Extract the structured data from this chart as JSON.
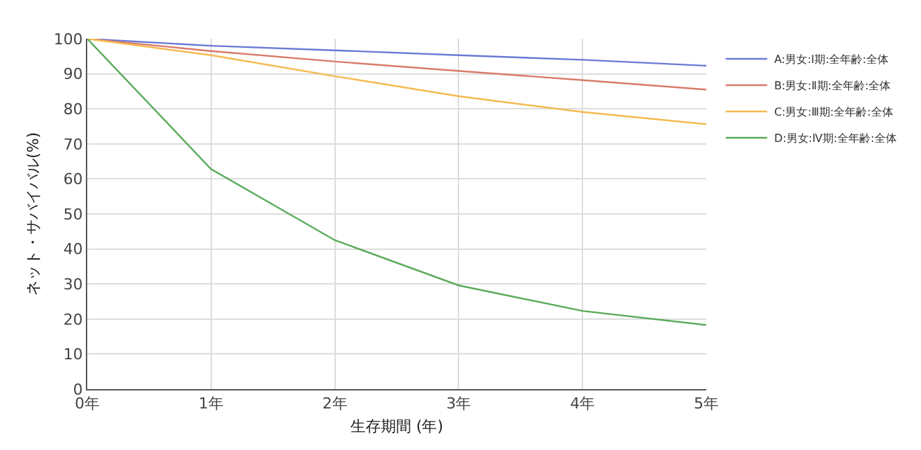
{
  "chart_data": {
    "type": "line",
    "xlabel": "生存期間 (年)",
    "ylabel": "ネット・サバイバル(%)",
    "x": [
      0,
      1,
      2,
      3,
      4,
      5
    ],
    "series": [
      {
        "name": "A:男女:Ⅰ期:全年齢:全体",
        "color": "#6a78d6",
        "values": [
          100,
          98,
          96.7,
          95.3,
          94,
          92.3
        ]
      },
      {
        "name": "B:男女:Ⅱ期:全年齢:全体",
        "color": "#d97a6a",
        "values": [
          100,
          96.5,
          93.5,
          90.8,
          88.2,
          85.5
        ]
      },
      {
        "name": "C:男女:Ⅲ期:全年齢:全体",
        "color": "#f5b94f",
        "values": [
          100,
          95.3,
          89.3,
          83.6,
          79.1,
          75.6
        ]
      },
      {
        "name": "D:男女:Ⅳ期:全年齢:全体",
        "color": "#5aaa5a",
        "values": [
          100,
          62.8,
          42.5,
          29.6,
          22.3,
          18.3
        ]
      }
    ],
    "xlim": [
      0,
      5
    ],
    "xticks": [
      {
        "value": 0,
        "label": "0年"
      },
      {
        "value": 1,
        "label": "1年"
      },
      {
        "value": 2,
        "label": "2年"
      },
      {
        "value": 3,
        "label": "3年"
      },
      {
        "value": 4,
        "label": "4年"
      },
      {
        "value": 5,
        "label": "5年"
      }
    ],
    "ylim": [
      0,
      100
    ],
    "yticks": [
      0,
      10,
      20,
      30,
      40,
      50,
      60,
      70,
      80,
      90,
      100
    ],
    "grid": true,
    "legend": "right",
    "marker": "none",
    "line_style": "solid"
  }
}
